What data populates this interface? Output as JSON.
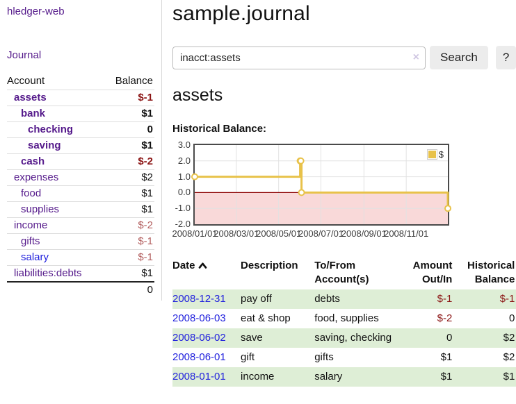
{
  "app": {
    "brand": "hledger-web",
    "nav_journal": "Journal"
  },
  "sidebar": {
    "headers": {
      "account": "Account",
      "balance": "Balance"
    },
    "rows": [
      {
        "name": "assets",
        "balance": "$-1",
        "level": 1,
        "bold": true,
        "negative": true,
        "blue": false
      },
      {
        "name": "bank",
        "balance": "$1",
        "level": 2,
        "bold": true,
        "negative": false,
        "blue": false
      },
      {
        "name": "checking",
        "balance": "0",
        "level": 3,
        "bold": true,
        "negative": false,
        "blue": false
      },
      {
        "name": "saving",
        "balance": "$1",
        "level": 3,
        "bold": true,
        "negative": false,
        "blue": false
      },
      {
        "name": "cash",
        "balance": "$-2",
        "level": 2,
        "bold": true,
        "negative": true,
        "blue": false
      },
      {
        "name": "expenses",
        "balance": "$2",
        "level": 1,
        "bold": false,
        "negative": false,
        "blue": false
      },
      {
        "name": "food",
        "balance": "$1",
        "level": 2,
        "bold": false,
        "negative": false,
        "blue": false
      },
      {
        "name": "supplies",
        "balance": "$1",
        "level": 2,
        "bold": false,
        "negative": false,
        "blue": false
      },
      {
        "name": "income",
        "balance": "$-2",
        "level": 1,
        "bold": false,
        "negative": true,
        "blue": false
      },
      {
        "name": "gifts",
        "balance": "$-1",
        "level": 2,
        "bold": false,
        "negative": true,
        "blue": false
      },
      {
        "name": "salary",
        "balance": "$-1",
        "level": 2,
        "bold": false,
        "negative": true,
        "blue": true
      },
      {
        "name": "liabilities:debts",
        "balance": "$1",
        "level": 1,
        "bold": false,
        "negative": false,
        "blue": false
      }
    ],
    "total": "0"
  },
  "header": {
    "title": "sample.journal"
  },
  "search": {
    "value": "inacct:assets",
    "clear_icon": "×",
    "button": "Search",
    "help_button": "?"
  },
  "account_page": {
    "title": "assets",
    "chart_label": "Historical Balance:"
  },
  "chart_data": {
    "type": "line",
    "step": true,
    "title": "Historical Balance",
    "series": [
      {
        "name": "$",
        "color": "#e8c24a",
        "points": [
          [
            "2008-01-01",
            1.0
          ],
          [
            "2008-06-01",
            2.0
          ],
          [
            "2008-06-02",
            2.0
          ],
          [
            "2008-06-03",
            0.0
          ],
          [
            "2008-12-31",
            -1.0
          ]
        ]
      }
    ],
    "x_ticks": [
      "2008/01/01",
      "2008/03/01",
      "2008/05/01",
      "2008/07/01",
      "2008/09/01",
      "2008/11/01"
    ],
    "y_ticks": [
      3.0,
      2.0,
      1.0,
      0.0,
      -1.0,
      -2.0
    ],
    "xlim": [
      "2008-01-01",
      "2008-12-31"
    ],
    "ylim": [
      -2.0,
      3.0
    ],
    "grid": true,
    "legend": {
      "label": "$",
      "position": "top-right"
    },
    "negative_region_fill": "#f9d9d9",
    "zero_line_color": "#8b0000"
  },
  "register": {
    "headers": {
      "date": "Date",
      "description": "Description",
      "accounts": "To/From Account(s)",
      "amount": "Amount Out/In",
      "balance": "Historical Balance"
    },
    "rows": [
      {
        "date": "2008-12-31",
        "description": "pay off",
        "accounts": "debts",
        "amount": "$-1",
        "balance": "$-1",
        "amount_negative": true,
        "balance_negative": true
      },
      {
        "date": "2008-06-03",
        "description": "eat & shop",
        "accounts": "food, supplies",
        "amount": "$-2",
        "balance": "0",
        "amount_negative": true,
        "balance_negative": false
      },
      {
        "date": "2008-06-02",
        "description": "save",
        "accounts": "saving, checking",
        "amount": "0",
        "balance": "$2",
        "amount_negative": false,
        "balance_negative": false
      },
      {
        "date": "2008-06-01",
        "description": "gift",
        "accounts": "gifts",
        "amount": "$1",
        "balance": "$2",
        "amount_negative": false,
        "balance_negative": false
      },
      {
        "date": "2008-01-01",
        "description": "income",
        "accounts": "salary",
        "amount": "$1",
        "balance": "$1",
        "amount_negative": false,
        "balance_negative": false
      }
    ]
  },
  "colors": {
    "link_purple": "#551a8b",
    "link_blue": "#2222dd",
    "negative_strong": "#8b1414",
    "negative_soft": "#b35f5f",
    "row_green": "#deeed6",
    "chart_line": "#e8c24a",
    "chart_negative_fill": "#f9d9d9",
    "zero_line": "#8b0000",
    "button_bg": "#ececec"
  }
}
